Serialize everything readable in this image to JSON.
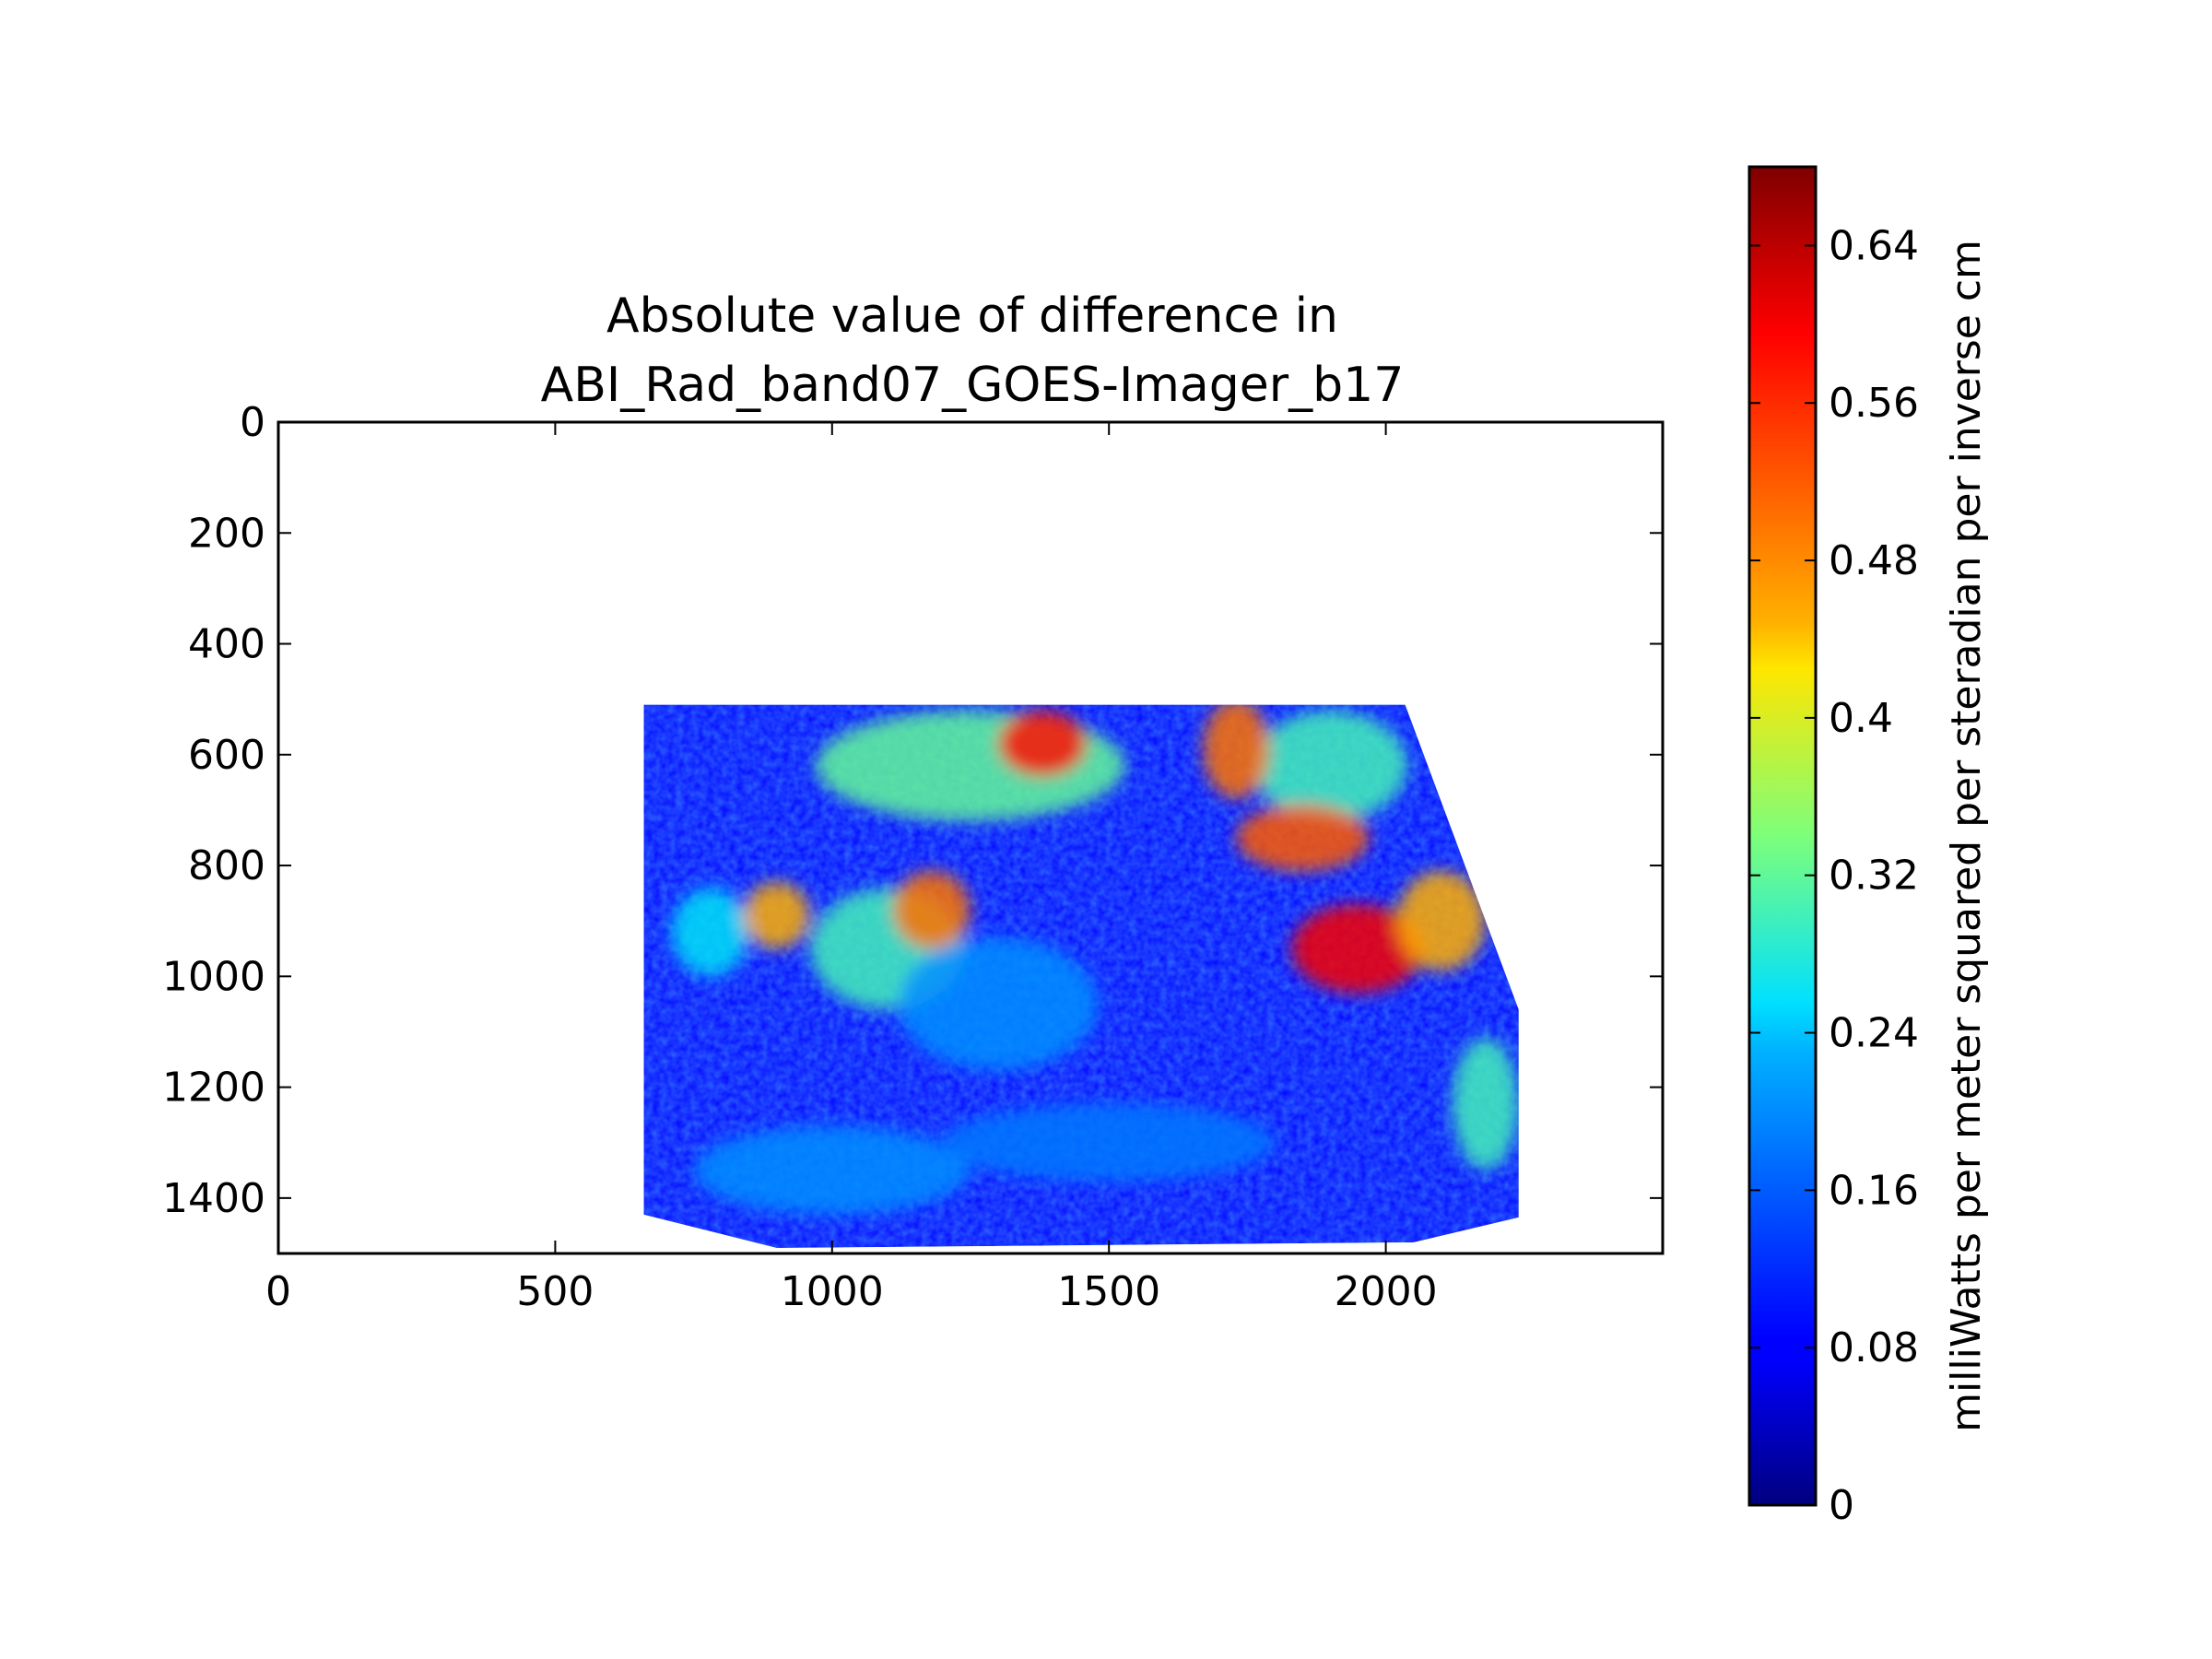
{
  "chart_data": {
    "type": "heatmap",
    "title": [
      "Absolute value of difference in",
      "ABI_Rad_band07_GOES-Imager_b17"
    ],
    "xlabel": "",
    "ylabel": "",
    "xlim": [
      0,
      2500
    ],
    "ylim": [
      1500,
      0
    ],
    "y_inverted": true,
    "x_ticks": [
      "0",
      "500",
      "1000",
      "1500",
      "2000"
    ],
    "x_tick_values": [
      0,
      500,
      1000,
      1500,
      2000
    ],
    "y_ticks": [
      "0",
      "200",
      "400",
      "600",
      "800",
      "1000",
      "1200",
      "1400"
    ],
    "y_tick_values": [
      0,
      200,
      400,
      600,
      800,
      1000,
      1200,
      1400
    ],
    "grid": false,
    "colormap": "jet",
    "colorbar": {
      "label": "milliWatts per meter squared per steradian per inverse cm",
      "range": [
        0,
        0.68
      ],
      "ticks": [
        "0",
        "0.08",
        "0.16",
        "0.24",
        "0.32",
        "0.4",
        "0.48",
        "0.56",
        "0.64"
      ],
      "tick_values": [
        0,
        0.08,
        0.16,
        0.24,
        0.32,
        0.4,
        0.48,
        0.56,
        0.64
      ],
      "placement": "right"
    },
    "data_region_outline": [
      [
        660,
        510
      ],
      [
        2035,
        510
      ],
      [
        2240,
        1060
      ],
      [
        2240,
        1435
      ],
      [
        2050,
        1480
      ],
      [
        900,
        1490
      ],
      [
        660,
        1430
      ]
    ],
    "background_value_range": [
      0.03,
      0.12
    ],
    "high_difference_areas": [
      {
        "x": 1380,
        "y": 580,
        "rx": 80,
        "ry": 60,
        "value": 0.58
      },
      {
        "x": 1730,
        "y": 590,
        "rx": 60,
        "ry": 90,
        "value": 0.5
      },
      {
        "x": 1850,
        "y": 750,
        "rx": 120,
        "ry": 60,
        "value": 0.52
      },
      {
        "x": 1950,
        "y": 950,
        "rx": 120,
        "ry": 80,
        "value": 0.6
      },
      {
        "x": 2100,
        "y": 900,
        "rx": 80,
        "ry": 90,
        "value": 0.45
      },
      {
        "x": 1180,
        "y": 880,
        "rx": 70,
        "ry": 70,
        "value": 0.5
      },
      {
        "x": 900,
        "y": 890,
        "rx": 60,
        "ry": 60,
        "value": 0.45
      }
    ],
    "medium_difference_areas": [
      {
        "x": 1250,
        "y": 620,
        "rx": 280,
        "ry": 100,
        "value": 0.32
      },
      {
        "x": 1100,
        "y": 950,
        "rx": 140,
        "ry": 110,
        "value": 0.3
      },
      {
        "x": 1900,
        "y": 620,
        "rx": 140,
        "ry": 100,
        "value": 0.3
      },
      {
        "x": 2180,
        "y": 1230,
        "rx": 60,
        "ry": 120,
        "value": 0.3
      },
      {
        "x": 780,
        "y": 920,
        "rx": 70,
        "ry": 80,
        "value": 0.26
      },
      {
        "x": 1000,
        "y": 1350,
        "rx": 250,
        "ry": 80,
        "value": 0.2
      },
      {
        "x": 1500,
        "y": 1300,
        "rx": 300,
        "ry": 70,
        "value": 0.18
      },
      {
        "x": 1300,
        "y": 1050,
        "rx": 180,
        "ry": 120,
        "value": 0.2
      }
    ]
  }
}
